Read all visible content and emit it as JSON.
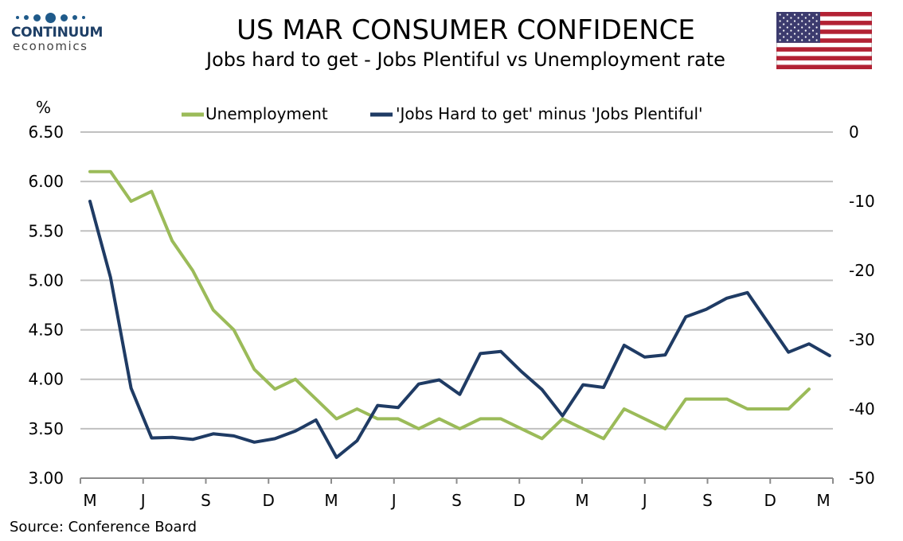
{
  "brand": {
    "name": "CONTINUUM",
    "tagline": "economics"
  },
  "header": {
    "title": "US MAR CONSUMER CONFIDENCE",
    "subtitle": "Jobs hard to get - Jobs Plentiful vs Unemployment rate"
  },
  "footer": {
    "source": "Source: Conference Board"
  },
  "colors": {
    "green": "#9bbb59",
    "navy": "#1f3b64",
    "grid": "#c0c0c0",
    "flag_red": "#b22234",
    "flag_blue": "#3c3b6e"
  },
  "chart_data": {
    "type": "line",
    "left_axis_unit_label": "%",
    "legend_position": "top-center",
    "grid": true,
    "x_tick_labels": [
      "M",
      "J",
      "S",
      "D",
      "M",
      "J",
      "S",
      "D",
      "M",
      "J",
      "S",
      "D",
      "M"
    ],
    "y_left": {
      "min": 3.0,
      "max": 6.5,
      "step": 0.5,
      "ticks": [
        "3.00",
        "3.50",
        "4.00",
        "4.50",
        "5.00",
        "5.50",
        "6.00",
        "6.50"
      ]
    },
    "y_right": {
      "min": -50,
      "max": 0,
      "step": 10,
      "ticks": [
        "-50",
        "-40",
        "-30",
        "-20",
        "-10",
        "0"
      ]
    },
    "series": [
      {
        "name": "Unemployment",
        "axis": "left",
        "color": "#9bbb59",
        "values": [
          6.1,
          6.1,
          5.8,
          5.9,
          5.4,
          5.1,
          4.7,
          4.5,
          4.1,
          3.9,
          4.0,
          3.8,
          3.6,
          3.7,
          3.6,
          3.6,
          3.5,
          3.6,
          3.5,
          3.6,
          3.6,
          3.5,
          3.4,
          3.6,
          3.5,
          3.4,
          3.7,
          3.6,
          3.5,
          3.8,
          3.8,
          3.8,
          3.7,
          3.7,
          3.7,
          3.9
        ]
      },
      {
        "name": "'Jobs Hard to get' minus 'Jobs Plentiful'",
        "axis": "right",
        "color": "#1f3b64",
        "values": [
          -10,
          -21,
          -37,
          -44.2,
          -44.1,
          -44.4,
          -43.6,
          -43.9,
          -44.8,
          -44.3,
          -43.2,
          -41.6,
          -47,
          -44.6,
          -39.5,
          -39.8,
          -36.4,
          -35.8,
          -37.9,
          -32,
          -31.7,
          -34.6,
          -37.2,
          -41,
          -36.5,
          -36.9,
          -30.8,
          -32.5,
          -32.2,
          -26.7,
          -25.6,
          -24,
          -23.2,
          -27.5,
          -31.8,
          -30.6,
          -32.3
        ]
      }
    ]
  }
}
